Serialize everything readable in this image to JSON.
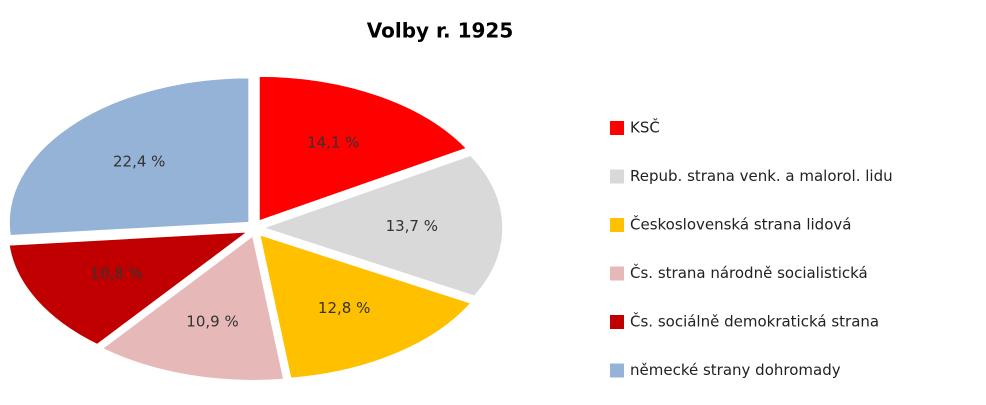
{
  "chart_data": {
    "type": "pie",
    "title": "Volby r. 1925",
    "categories": [
      "KSČ",
      "Repub. strana venk. a malorol. lidu",
      "Československá strana lidová",
      "Čs. strana národně socialistická",
      "Čs. sociálně demokratická strana",
      "německé strany dohromady"
    ],
    "values": [
      14.1,
      13.7,
      12.8,
      10.9,
      10.8,
      22.4
    ],
    "value_labels": [
      "14,1 %",
      "13,7 %",
      "12,8 %",
      "10,9 %",
      "10,8 %",
      "22,4 %"
    ],
    "colors": [
      "#ff0000",
      "#d9d9d9",
      "#ffc000",
      "#e6b9b8",
      "#c00000",
      "#95b3d7"
    ],
    "legend": "right"
  }
}
